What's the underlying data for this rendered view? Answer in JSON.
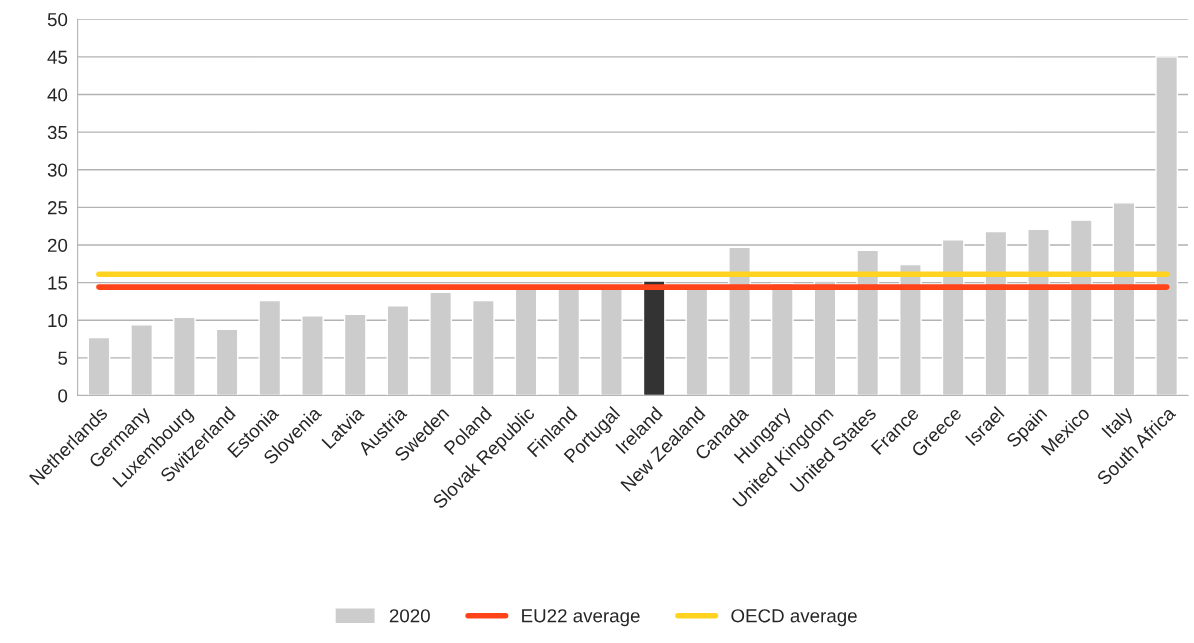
{
  "chart_data": {
    "type": "bar",
    "categories": [
      "Netherlands",
      "Germany",
      "Luxembourg",
      "Switzerland",
      "Estonia",
      "Slovenia",
      "Latvia",
      "Austria",
      "Sweden",
      "Poland",
      "Slovak Republic",
      "Finland",
      "Portugal",
      "Ireland",
      "New Zealand",
      "Canada",
      "Hungary",
      "United Kingdom",
      "United States",
      "France",
      "Greece",
      "Israel",
      "Spain",
      "Mexico",
      "Italy",
      "South Africa"
    ],
    "series": [
      {
        "name": "2020",
        "color": "#cccccc",
        "colors": [
          "#cccccc",
          "#cccccc",
          "#cccccc",
          "#cccccc",
          "#cccccc",
          "#cccccc",
          "#cccccc",
          "#cccccc",
          "#cccccc",
          "#cccccc",
          "#cccccc",
          "#cccccc",
          "#cccccc",
          "#333333",
          "#cccccc",
          "#cccccc",
          "#cccccc",
          "#cccccc",
          "#cccccc",
          "#cccccc",
          "#cccccc",
          "#cccccc",
          "#cccccc",
          "#cccccc",
          "#cccccc",
          "#cccccc"
        ],
        "values": [
          7.7,
          9.4,
          10.4,
          8.8,
          12.6,
          10.6,
          10.8,
          11.9,
          13.7,
          12.6,
          14.3,
          14.3,
          14.3,
          15.2,
          14.3,
          19.7,
          14.9,
          15.2,
          19.3,
          17.4,
          20.7,
          21.8,
          22.1,
          23.3,
          25.6,
          45
        ]
      },
      {
        "name": "EU22 average",
        "type": "line",
        "color": "#ff4419",
        "values": [
          14.4,
          14.4,
          14.4,
          14.4,
          14.4,
          14.4,
          14.4,
          14.4,
          14.4,
          14.4,
          14.4,
          14.4,
          14.4,
          14.4,
          14.4,
          14.4,
          14.4,
          14.4,
          14.4,
          14.4,
          14.4,
          14.4,
          14.4,
          14.4,
          14.4,
          14.4
        ]
      },
      {
        "name": "OECD average",
        "type": "line",
        "color": "#ffd320",
        "values": [
          16.1,
          16.1,
          16.1,
          16.1,
          16.1,
          16.1,
          16.1,
          16.1,
          16.1,
          16.1,
          16.1,
          16.1,
          16.1,
          16.1,
          16.1,
          16.1,
          16.1,
          16.1,
          16.1,
          16.1,
          16.1,
          16.1,
          16.1,
          16.1,
          16.1,
          16.1
        ]
      }
    ],
    "ylim": [
      0,
      50
    ],
    "yticks": [
      0,
      5,
      10,
      15,
      20,
      25,
      30,
      35,
      40,
      45,
      50
    ],
    "grid": "y",
    "legend": "bottom"
  }
}
